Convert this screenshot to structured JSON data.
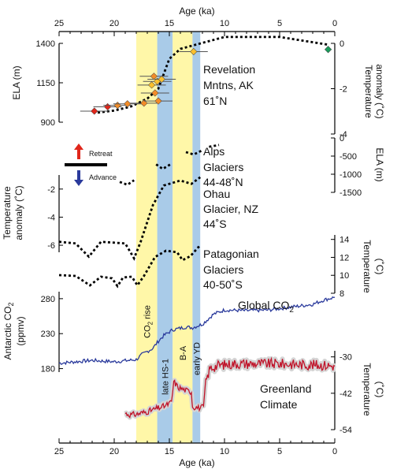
{
  "chart_data": {
    "type": "line",
    "x_axis": {
      "label": "Age (ka)",
      "range": [
        25,
        0
      ],
      "ticks": [
        25,
        20,
        15,
        10,
        5,
        0
      ]
    },
    "shaded_periods": [
      {
        "label": "CO2 rise",
        "from": 18,
        "to": 16.1,
        "color": "#fff7a8"
      },
      {
        "label": "late HS-1",
        "from": 16.1,
        "to": 14.7,
        "color": "#a9cbe8"
      },
      {
        "label": "B-A",
        "from": 14.7,
        "to": 12.9,
        "color": "#fff7a8"
      },
      {
        "label": "early YD",
        "from": 12.9,
        "to": 12.2,
        "color": "#a9cbe8"
      }
    ],
    "legend": {
      "retreat": "Retreat",
      "advance": "Advance",
      "retreat_color": "#e0261b",
      "advance_color": "#2a3a9c"
    },
    "panels": {
      "revelation": {
        "name": "Revelation",
        "name2": "Mntns, AK",
        "name3": "61˚N",
        "left_axis": {
          "label": "ELA (m)",
          "ticks": [
            1400,
            1150,
            900
          ],
          "range": [
            900,
            1400
          ]
        },
        "right_axis": {
          "label": "Temperature",
          "label2": "anomaly (˚C)",
          "ticks": [
            0,
            -2,
            -4
          ],
          "range": [
            -4,
            0
          ]
        },
        "temp_line": [
          [
            21.5,
            -3.2
          ],
          [
            20,
            -3.1
          ],
          [
            18.5,
            -2.9
          ],
          [
            17,
            -2.5
          ],
          [
            16,
            -2.0
          ],
          [
            15,
            -0.5
          ],
          [
            14,
            0.0
          ],
          [
            12,
            0.3
          ],
          [
            10,
            0.6
          ],
          [
            5,
            0.6
          ],
          [
            0.5,
            0.2
          ]
        ],
        "ela_points": [
          {
            "age": 21.8,
            "ela": 960,
            "color": "#e0261b"
          },
          {
            "age": 20.6,
            "ela": 990,
            "color": "#e0261b"
          },
          {
            "age": 19.7,
            "ela": 1000,
            "color": "#f28c28"
          },
          {
            "age": 18.8,
            "ela": 1010,
            "color": "#f28c28"
          },
          {
            "age": 17.3,
            "ela": 1015,
            "color": "#f28c28"
          },
          {
            "age": 16.0,
            "ela": 1030,
            "color": "#f28c28"
          },
          {
            "age": 16.3,
            "ela": 1085,
            "color": "#f28c28"
          },
          {
            "age": 16.6,
            "ela": 1140,
            "color": "#fbc02d"
          },
          {
            "age": 16.1,
            "ela": 1165,
            "color": "#fbc02d"
          },
          {
            "age": 15.7,
            "ela": 1180,
            "color": "#fbc02d"
          },
          {
            "age": 16.4,
            "ela": 1200,
            "color": "#f28c28"
          },
          {
            "age": 12.8,
            "ela": 1370,
            "color": "#fbc02d"
          },
          {
            "age": 0.6,
            "ela": 1385,
            "color": "#1a9c5b"
          }
        ]
      },
      "alps": {
        "name": "Alps",
        "name2": "Glaciers",
        "name3": "44-48˚N",
        "right_axis": {
          "label": "ELA (m)",
          "ticks": [
            0,
            -500,
            -1000,
            -1500
          ],
          "range": [
            -1500,
            0
          ]
        },
        "segments": [
          [
            [
              19.5,
              -1250
            ],
            [
              18.8,
              -1330
            ],
            [
              18.2,
              -1200
            ]
          ],
          [
            [
              16.2,
              -750
            ],
            [
              15.6,
              -880
            ],
            [
              14.8,
              -730
            ]
          ],
          [
            [
              13.5,
              -400
            ],
            [
              12.8,
              -470
            ],
            [
              12.0,
              -350
            ]
          ],
          [
            [
              11.4,
              -250
            ],
            [
              10.5,
              -200
            ]
          ]
        ]
      },
      "ohau": {
        "name": "Ohau",
        "name2": "Glacier, NZ",
        "name3": "44˚S",
        "left_axis": {
          "label": "Temperature",
          "label2": "anomaly (˚C)",
          "ticks": [
            -2,
            -4,
            -6
          ],
          "range": [
            -6.5,
            -1
          ]
        },
        "line": [
          [
            25,
            -5.7
          ],
          [
            23.5,
            -5.8
          ],
          [
            22.3,
            -6.6
          ],
          [
            21.2,
            -5.7
          ],
          [
            19,
            -5.8
          ],
          [
            18.2,
            -6.7
          ],
          [
            17.6,
            -5.7
          ],
          [
            16.5,
            -3.5
          ],
          [
            15.5,
            -2.3
          ],
          [
            14,
            -2.0
          ],
          [
            13,
            -2.2
          ],
          [
            12.2,
            -1.8
          ]
        ]
      },
      "patagonia": {
        "name": "Patagonian",
        "name2": "Glaciers",
        "name3": "40-50˚S",
        "right_axis": {
          "label": "Temperature",
          "label2": "(˚C)",
          "ticks": [
            14,
            12,
            10,
            8
          ],
          "range": [
            8,
            14.5
          ]
        },
        "line": [
          [
            25,
            9.9
          ],
          [
            23.5,
            9.8
          ],
          [
            22.2,
            8.6
          ],
          [
            21.2,
            9.7
          ],
          [
            20.2,
            9.5
          ],
          [
            19.7,
            8.5
          ],
          [
            19.2,
            9.6
          ],
          [
            18.4,
            9.7
          ],
          [
            17.9,
            8.6
          ],
          [
            17.3,
            9.8
          ],
          [
            16.3,
            12.2
          ],
          [
            15.3,
            13.0
          ],
          [
            14.3,
            12.8
          ],
          [
            13.8,
            11.8
          ],
          [
            13.1,
            12.3
          ],
          [
            12.2,
            13.7
          ]
        ]
      },
      "co2": {
        "name": "Global CO2",
        "left_axis": {
          "label": "Antarctic CO2",
          "label2": "(ppmv)",
          "ticks": [
            280,
            230,
            180
          ],
          "range": [
            175,
            290
          ]
        },
        "line": [
          [
            25,
            187
          ],
          [
            22,
            191
          ],
          [
            20,
            189
          ],
          [
            18,
            192
          ],
          [
            17.5,
            199
          ],
          [
            16.5,
            208
          ],
          [
            16,
            218
          ],
          [
            15.5,
            226
          ],
          [
            14.7,
            234
          ],
          [
            13.5,
            238
          ],
          [
            12.9,
            237
          ],
          [
            12,
            242
          ],
          [
            11,
            256
          ],
          [
            10,
            262
          ],
          [
            8,
            261
          ],
          [
            6,
            262
          ],
          [
            4,
            266
          ],
          [
            2,
            270
          ],
          [
            1,
            276
          ],
          [
            0,
            280
          ]
        ]
      },
      "greenland": {
        "name": "Greenland",
        "name2": "Climate",
        "right_axis": {
          "label": "Temperature",
          "label2": "(˚C)",
          "ticks": [
            -30,
            -42,
            -54
          ],
          "range": [
            -54,
            -28
          ]
        },
        "line": [
          [
            19,
            -49.3
          ],
          [
            18.5,
            -49.8
          ],
          [
            18,
            -49.6
          ],
          [
            17,
            -48.7
          ],
          [
            16,
            -47.5
          ],
          [
            15.3,
            -46.6
          ],
          [
            14.8,
            -45.5
          ],
          [
            14.6,
            -38.5
          ],
          [
            14.2,
            -40.5
          ],
          [
            13.5,
            -41.5
          ],
          [
            13.0,
            -42.0
          ],
          [
            12.9,
            -47.0
          ],
          [
            12.2,
            -47.5
          ],
          [
            11.9,
            -47.0
          ],
          [
            11.7,
            -38.5
          ],
          [
            11.3,
            -34.0
          ],
          [
            10.5,
            -33.0
          ],
          [
            9,
            -32.5
          ],
          [
            7,
            -32.5
          ],
          [
            5,
            -32.5
          ],
          [
            3,
            -32.8
          ],
          [
            1,
            -33.0
          ],
          [
            0,
            -33.3
          ]
        ]
      }
    }
  }
}
